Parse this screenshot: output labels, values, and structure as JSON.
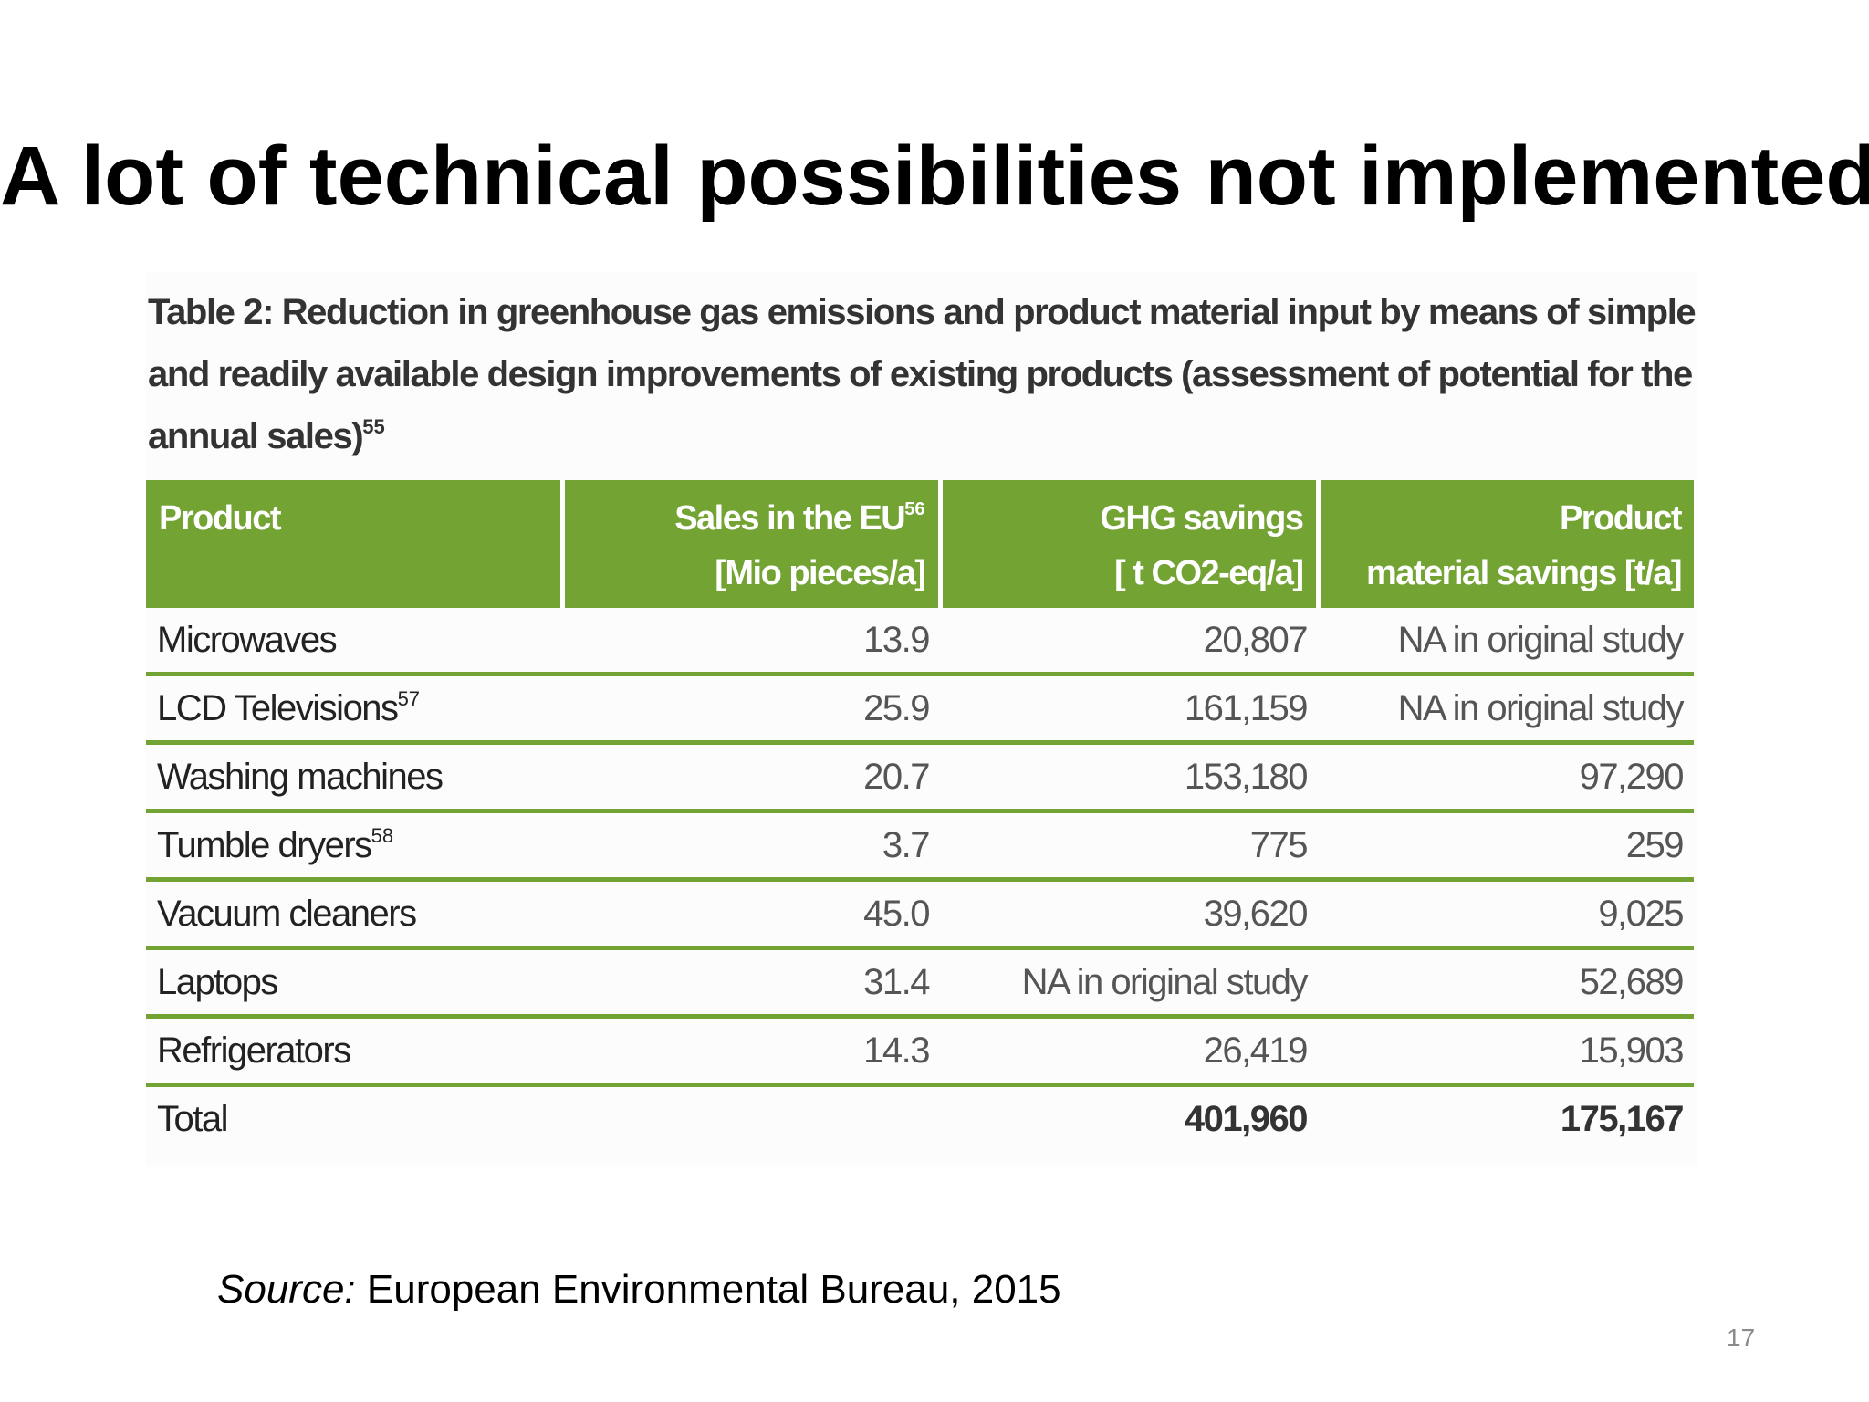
{
  "slide": {
    "title": "A lot of technical possibilities not implemented",
    "source_label": "Source:",
    "source_text": "European Environmental Bureau, 2015",
    "page_number": "17"
  },
  "table": {
    "caption_line1": "Table 2: Reduction in greenhouse gas emissions and product material input by means of simple",
    "caption_line2": "and readily available design improvements of existing products (assessment of potential for the",
    "caption_line3": "annual sales)",
    "caption_footnote": "55",
    "headers": {
      "product": "Product",
      "sales_line1": "Sales in the EU",
      "sales_footnote": "56",
      "sales_line2": "[Mio pieces/a]",
      "ghg_line1": "GHG savings",
      "ghg_line2": "[ t CO2-eq/a]",
      "material_line1": "Product",
      "material_line2": "material savings [t/a]"
    },
    "rows": [
      {
        "product": "Microwaves",
        "footnote": "",
        "sales": "13.9",
        "ghg": "20,807",
        "material": "NA in original study"
      },
      {
        "product": "LCD Televisions",
        "footnote": "57",
        "sales": "25.9",
        "ghg": "161,159",
        "material": "NA in original study"
      },
      {
        "product": "Washing machines",
        "footnote": "",
        "sales": "20.7",
        "ghg": "153,180",
        "material": "97,290"
      },
      {
        "product": "Tumble dryers",
        "footnote": "58",
        "sales": "3.7",
        "ghg": "775",
        "material": "259"
      },
      {
        "product": "Vacuum cleaners",
        "footnote": "",
        "sales": "45.0",
        "ghg": "39,620",
        "material": "9,025"
      },
      {
        "product": "Laptops",
        "footnote": "",
        "sales": "31.4",
        "ghg": "NA in original study",
        "material": "52,689"
      },
      {
        "product": "Refrigerators",
        "footnote": "",
        "sales": "14.3",
        "ghg": "26,419",
        "material": "15,903"
      }
    ],
    "total": {
      "label": "Total",
      "sales": "",
      "ghg": "401,960",
      "material": "175,167"
    }
  },
  "colors": {
    "header_green": "#72a333",
    "row_rule_green": "#72a333",
    "text_dark": "#333333"
  }
}
